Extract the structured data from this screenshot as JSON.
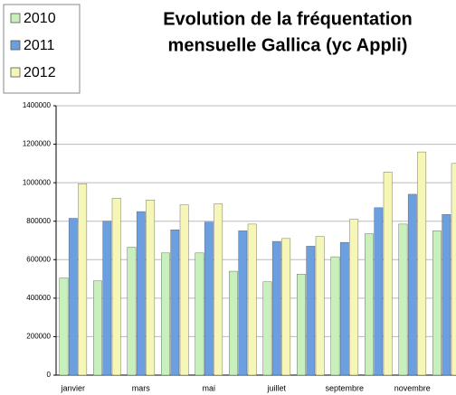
{
  "chart_data": {
    "type": "bar",
    "title": [
      "Evolution de la fréquentation",
      "mensuelle Gallica (yc Appli)"
    ],
    "categories": [
      "janvier",
      null,
      "mars",
      null,
      "mai",
      null,
      "juillet",
      null,
      "septembre",
      null,
      "novembre",
      null
    ],
    "series": [
      {
        "name": "2010",
        "color": "#c8f0bc",
        "values": [
          505000,
          490000,
          665000,
          635000,
          635000,
          540000,
          485000,
          525000,
          615000,
          735000,
          785000,
          750000
        ]
      },
      {
        "name": "2011",
        "color": "#6c9fe0",
        "values": [
          815000,
          800000,
          850000,
          755000,
          795000,
          750000,
          695000,
          670000,
          690000,
          870000,
          940000,
          835000
        ]
      },
      {
        "name": "2012",
        "color": "#f6f6b6",
        "values": [
          995000,
          920000,
          910000,
          885000,
          890000,
          785000,
          710000,
          720000,
          810000,
          1055000,
          1160000,
          1100000
        ]
      }
    ],
    "ylim": [
      0,
      1400000
    ],
    "yticks": [
      0,
      200000,
      400000,
      600000,
      800000,
      1000000,
      1200000,
      1400000
    ],
    "grid": true,
    "legend": "top-left"
  }
}
